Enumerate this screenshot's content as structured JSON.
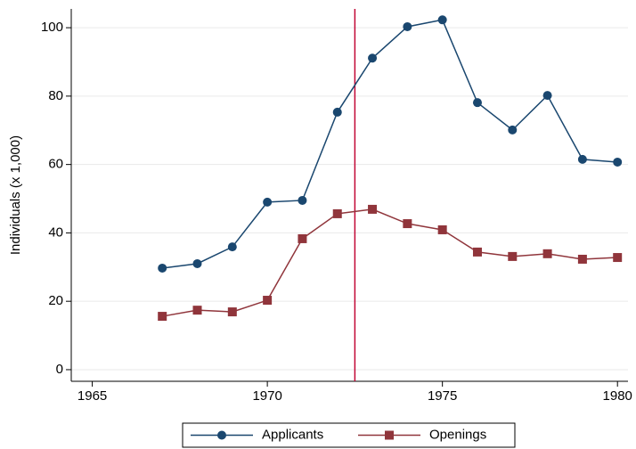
{
  "chart_data": {
    "type": "line",
    "y_label": "Individuals (x 1,000)",
    "x": [
      1967,
      1968,
      1969,
      1970,
      1971,
      1972,
      1973,
      1974,
      1975,
      1976,
      1977,
      1978,
      1979,
      1980
    ],
    "series": [
      {
        "name": "Applicants",
        "color": "#1a476f",
        "marker": "circle",
        "values": [
          29.7,
          31.0,
          35.9,
          49.0,
          49.5,
          75.3,
          91.1,
          100.3,
          102.3,
          78.1,
          70.1,
          80.2,
          61.5,
          60.7
        ]
      },
      {
        "name": "Openings",
        "color": "#90353b",
        "marker": "square",
        "values": [
          15.6,
          17.4,
          16.9,
          20.3,
          38.3,
          45.6,
          46.9,
          42.7,
          40.9,
          34.4,
          33.1,
          33.9,
          32.3,
          32.8
        ]
      }
    ],
    "vline": {
      "x": 1972.5,
      "color": "#c10534"
    },
    "xlim": [
      1964.4,
      1980.3
    ],
    "xticks": [
      1965,
      1970,
      1975,
      1980
    ],
    "ylim": [
      -3.4,
      105.5
    ],
    "yticks": [
      0,
      20,
      40,
      60,
      80,
      100
    ],
    "grid": true,
    "legend": "bottom"
  }
}
